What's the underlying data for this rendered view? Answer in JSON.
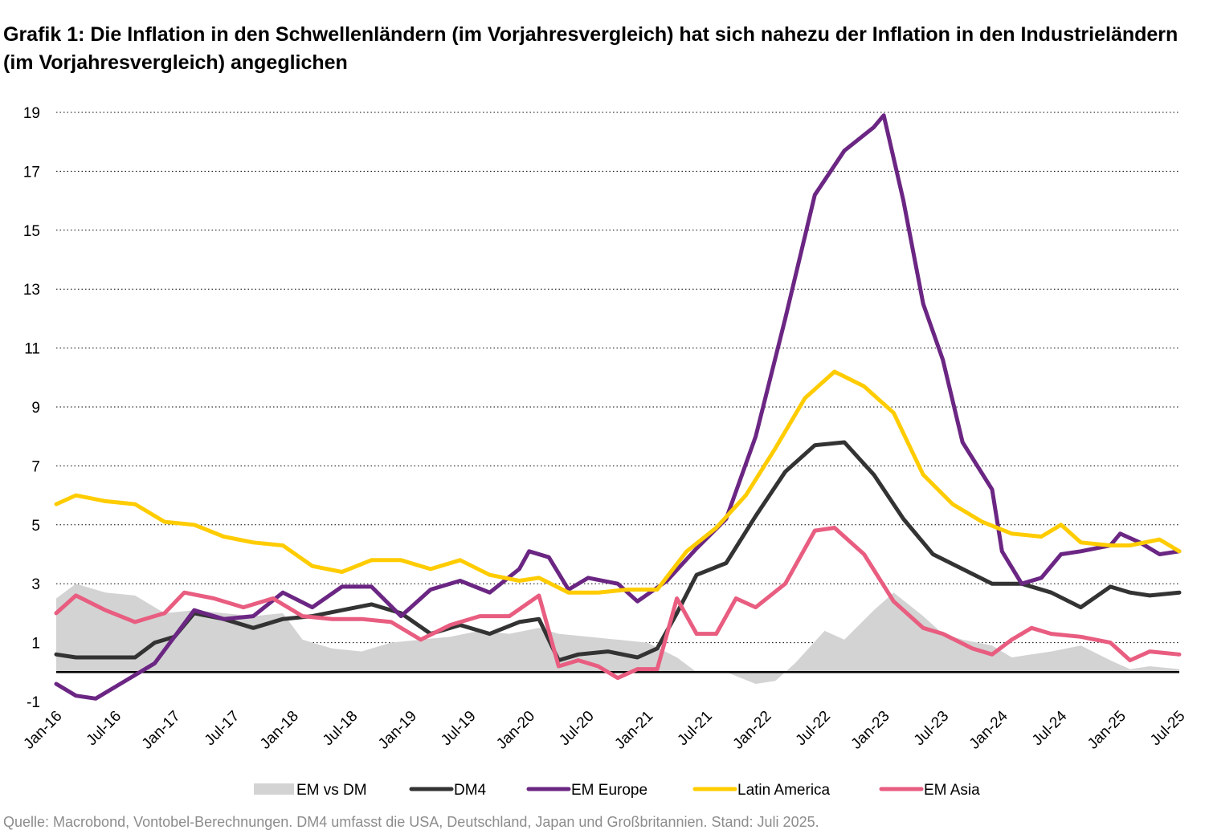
{
  "title": "Grafik 1: Die Inflation in den Schwellenländern (im Vorjahresvergleich) hat sich nahezu der Inflation in den Industrieländern (im Vorjahresvergleich) angeglichen",
  "source": "Quelle: Macrobond, Vontobel-Berechnungen. DM4 umfasst die USA, Deutschland, Japan und Großbritannien. Stand: Juli 2025.",
  "chart_data": {
    "type": "line",
    "title": "Grafik 1: Die Inflation in den Schwellenländern (im Vorjahresvergleich) hat sich nahezu der Inflation in den Industrieländern (im Vorjahresvergleich) angeglichen",
    "xlabel": "",
    "ylabel": "",
    "ylim": [
      -1,
      19
    ],
    "yticks": [
      -1,
      1,
      3,
      5,
      7,
      9,
      11,
      13,
      15,
      17,
      19
    ],
    "xlim": [
      "2016-01",
      "2025-07"
    ],
    "x_tick_labels": [
      "Jan-16",
      "Jul-16",
      "Jan-17",
      "Jul-17",
      "Jan-18",
      "Jul-18",
      "Jan-19",
      "Jul-19",
      "Jan-20",
      "Jul-20",
      "Jan-21",
      "Jul-21",
      "Jan-22",
      "Jul-22",
      "Jan-23",
      "Jul-23",
      "Jan-24",
      "Jul-24",
      "Jan-25",
      "Jul-25"
    ],
    "grid": "horizontal dotted",
    "legend_position": "bottom",
    "zero_line": true,
    "series": [
      {
        "name": "EM vs DM",
        "style": "area",
        "color": "#d3d3d3",
        "points": [
          [
            "2016-01",
            2.5
          ],
          [
            "2016-03",
            3.0
          ],
          [
            "2016-06",
            2.7
          ],
          [
            "2016-09",
            2.6
          ],
          [
            "2016-12",
            2.0
          ],
          [
            "2017-03",
            2.1
          ],
          [
            "2017-06",
            2.0
          ],
          [
            "2017-09",
            1.9
          ],
          [
            "2017-12",
            2.0
          ],
          [
            "2018-02",
            1.1
          ],
          [
            "2018-05",
            0.8
          ],
          [
            "2018-08",
            0.7
          ],
          [
            "2018-11",
            1.0
          ],
          [
            "2019-02",
            1.1
          ],
          [
            "2019-05",
            1.2
          ],
          [
            "2019-08",
            1.4
          ],
          [
            "2019-11",
            1.3
          ],
          [
            "2020-02",
            1.5
          ],
          [
            "2020-04",
            1.3
          ],
          [
            "2020-07",
            1.2
          ],
          [
            "2020-10",
            1.1
          ],
          [
            "2021-01",
            1.0
          ],
          [
            "2021-04",
            0.5
          ],
          [
            "2021-06",
            0.0
          ],
          [
            "2021-09",
            0.0
          ],
          [
            "2021-12",
            -0.4
          ],
          [
            "2022-02",
            -0.3
          ],
          [
            "2022-04",
            0.3
          ],
          [
            "2022-07",
            1.4
          ],
          [
            "2022-09",
            1.1
          ],
          [
            "2022-12",
            2.1
          ],
          [
            "2023-02",
            2.7
          ],
          [
            "2023-05",
            1.9
          ],
          [
            "2023-07",
            1.3
          ],
          [
            "2023-09",
            1.1
          ],
          [
            "2023-12",
            0.9
          ],
          [
            "2024-02",
            0.5
          ],
          [
            "2024-04",
            0.6
          ],
          [
            "2024-06",
            0.7
          ],
          [
            "2024-09",
            0.9
          ],
          [
            "2024-12",
            0.4
          ],
          [
            "2025-02",
            0.1
          ],
          [
            "2025-04",
            0.2
          ],
          [
            "2025-07",
            0.1
          ]
        ]
      },
      {
        "name": "DM4",
        "style": "line",
        "color": "#333333",
        "points": [
          [
            "2016-01",
            0.6
          ],
          [
            "2016-03",
            0.5
          ],
          [
            "2016-06",
            0.5
          ],
          [
            "2016-09",
            0.5
          ],
          [
            "2016-11",
            1.0
          ],
          [
            "2017-01",
            1.2
          ],
          [
            "2017-03",
            2.0
          ],
          [
            "2017-06",
            1.8
          ],
          [
            "2017-09",
            1.5
          ],
          [
            "2017-12",
            1.8
          ],
          [
            "2018-03",
            1.9
          ],
          [
            "2018-06",
            2.1
          ],
          [
            "2018-09",
            2.3
          ],
          [
            "2018-12",
            2.0
          ],
          [
            "2019-03",
            1.3
          ],
          [
            "2019-06",
            1.6
          ],
          [
            "2019-09",
            1.3
          ],
          [
            "2019-12",
            1.7
          ],
          [
            "2020-02",
            1.8
          ],
          [
            "2020-04",
            0.4
          ],
          [
            "2020-06",
            0.6
          ],
          [
            "2020-09",
            0.7
          ],
          [
            "2020-12",
            0.5
          ],
          [
            "2021-02",
            0.8
          ],
          [
            "2021-04",
            2.0
          ],
          [
            "2021-06",
            3.3
          ],
          [
            "2021-09",
            3.7
          ],
          [
            "2021-12",
            5.3
          ],
          [
            "2022-03",
            6.8
          ],
          [
            "2022-06",
            7.7
          ],
          [
            "2022-09",
            7.8
          ],
          [
            "2022-12",
            6.7
          ],
          [
            "2023-03",
            5.2
          ],
          [
            "2023-06",
            4.0
          ],
          [
            "2023-09",
            3.5
          ],
          [
            "2023-12",
            3.0
          ],
          [
            "2024-03",
            3.0
          ],
          [
            "2024-06",
            2.7
          ],
          [
            "2024-09",
            2.2
          ],
          [
            "2024-12",
            2.9
          ],
          [
            "2025-02",
            2.7
          ],
          [
            "2025-04",
            2.6
          ],
          [
            "2025-07",
            2.7
          ]
        ]
      },
      {
        "name": "EM Europe",
        "style": "line",
        "color": "#6b2683",
        "points": [
          [
            "2016-01",
            -0.4
          ],
          [
            "2016-03",
            -0.8
          ],
          [
            "2016-05",
            -0.9
          ],
          [
            "2016-07",
            -0.5
          ],
          [
            "2016-09",
            -0.1
          ],
          [
            "2016-11",
            0.3
          ],
          [
            "2017-01",
            1.2
          ],
          [
            "2017-03",
            2.1
          ],
          [
            "2017-06",
            1.8
          ],
          [
            "2017-09",
            1.9
          ],
          [
            "2017-12",
            2.7
          ],
          [
            "2018-03",
            2.2
          ],
          [
            "2018-06",
            2.9
          ],
          [
            "2018-09",
            2.9
          ],
          [
            "2018-12",
            1.9
          ],
          [
            "2019-03",
            2.8
          ],
          [
            "2019-06",
            3.1
          ],
          [
            "2019-09",
            2.7
          ],
          [
            "2019-12",
            3.5
          ],
          [
            "2020-01",
            4.1
          ],
          [
            "2020-03",
            3.9
          ],
          [
            "2020-05",
            2.8
          ],
          [
            "2020-07",
            3.2
          ],
          [
            "2020-10",
            3.0
          ],
          [
            "2020-12",
            2.4
          ],
          [
            "2021-03",
            3.1
          ],
          [
            "2021-06",
            4.2
          ],
          [
            "2021-09",
            5.2
          ],
          [
            "2021-12",
            8.0
          ],
          [
            "2022-03",
            12.0
          ],
          [
            "2022-06",
            16.2
          ],
          [
            "2022-09",
            17.7
          ],
          [
            "2022-12",
            18.5
          ],
          [
            "2023-01",
            18.9
          ],
          [
            "2023-03",
            16.0
          ],
          [
            "2023-05",
            12.5
          ],
          [
            "2023-07",
            10.6
          ],
          [
            "2023-09",
            7.8
          ],
          [
            "2023-12",
            6.2
          ],
          [
            "2024-01",
            4.1
          ],
          [
            "2024-03",
            3.0
          ],
          [
            "2024-05",
            3.2
          ],
          [
            "2024-07",
            4.0
          ],
          [
            "2024-09",
            4.1
          ],
          [
            "2024-12",
            4.3
          ],
          [
            "2025-01",
            4.7
          ],
          [
            "2025-03",
            4.4
          ],
          [
            "2025-05",
            4.0
          ],
          [
            "2025-07",
            4.1
          ]
        ]
      },
      {
        "name": "Latin America",
        "style": "line",
        "color": "#ffcc00",
        "points": [
          [
            "2016-01",
            5.7
          ],
          [
            "2016-03",
            6.0
          ],
          [
            "2016-06",
            5.8
          ],
          [
            "2016-09",
            5.7
          ],
          [
            "2016-12",
            5.1
          ],
          [
            "2017-03",
            5.0
          ],
          [
            "2017-06",
            4.6
          ],
          [
            "2017-09",
            4.4
          ],
          [
            "2017-12",
            4.3
          ],
          [
            "2018-03",
            3.6
          ],
          [
            "2018-06",
            3.4
          ],
          [
            "2018-09",
            3.8
          ],
          [
            "2018-12",
            3.8
          ],
          [
            "2019-03",
            3.5
          ],
          [
            "2019-06",
            3.8
          ],
          [
            "2019-09",
            3.3
          ],
          [
            "2019-12",
            3.1
          ],
          [
            "2020-02",
            3.2
          ],
          [
            "2020-05",
            2.7
          ],
          [
            "2020-08",
            2.7
          ],
          [
            "2020-11",
            2.8
          ],
          [
            "2021-02",
            2.8
          ],
          [
            "2021-05",
            4.1
          ],
          [
            "2021-08",
            4.9
          ],
          [
            "2021-11",
            6.0
          ],
          [
            "2022-02",
            7.6
          ],
          [
            "2022-05",
            9.3
          ],
          [
            "2022-08",
            10.2
          ],
          [
            "2022-11",
            9.7
          ],
          [
            "2023-02",
            8.8
          ],
          [
            "2023-05",
            6.7
          ],
          [
            "2023-08",
            5.7
          ],
          [
            "2023-11",
            5.1
          ],
          [
            "2024-02",
            4.7
          ],
          [
            "2024-05",
            4.6
          ],
          [
            "2024-07",
            5.0
          ],
          [
            "2024-09",
            4.4
          ],
          [
            "2024-12",
            4.3
          ],
          [
            "2025-02",
            4.3
          ],
          [
            "2025-05",
            4.5
          ],
          [
            "2025-07",
            4.1
          ]
        ]
      },
      {
        "name": "EM Asia",
        "style": "line",
        "color": "#e85d80",
        "points": [
          [
            "2016-01",
            2.0
          ],
          [
            "2016-03",
            2.6
          ],
          [
            "2016-06",
            2.1
          ],
          [
            "2016-09",
            1.7
          ],
          [
            "2016-12",
            2.0
          ],
          [
            "2017-02",
            2.7
          ],
          [
            "2017-05",
            2.5
          ],
          [
            "2017-08",
            2.2
          ],
          [
            "2017-11",
            2.5
          ],
          [
            "2018-02",
            1.9
          ],
          [
            "2018-05",
            1.8
          ],
          [
            "2018-08",
            1.8
          ],
          [
            "2018-11",
            1.7
          ],
          [
            "2019-02",
            1.1
          ],
          [
            "2019-05",
            1.6
          ],
          [
            "2019-08",
            1.9
          ],
          [
            "2019-11",
            1.9
          ],
          [
            "2020-02",
            2.6
          ],
          [
            "2020-04",
            0.2
          ],
          [
            "2020-06",
            0.4
          ],
          [
            "2020-08",
            0.2
          ],
          [
            "2020-10",
            -0.2
          ],
          [
            "2020-12",
            0.1
          ],
          [
            "2021-02",
            0.1
          ],
          [
            "2021-04",
            2.5
          ],
          [
            "2021-06",
            1.3
          ],
          [
            "2021-08",
            1.3
          ],
          [
            "2021-10",
            2.5
          ],
          [
            "2021-12",
            2.2
          ],
          [
            "2022-03",
            3.0
          ],
          [
            "2022-06",
            4.8
          ],
          [
            "2022-08",
            4.9
          ],
          [
            "2022-11",
            4.0
          ],
          [
            "2023-02",
            2.4
          ],
          [
            "2023-05",
            1.5
          ],
          [
            "2023-07",
            1.3
          ],
          [
            "2023-10",
            0.8
          ],
          [
            "2023-12",
            0.6
          ],
          [
            "2024-02",
            1.1
          ],
          [
            "2024-04",
            1.5
          ],
          [
            "2024-06",
            1.3
          ],
          [
            "2024-09",
            1.2
          ],
          [
            "2024-12",
            1.0
          ],
          [
            "2025-02",
            0.4
          ],
          [
            "2025-04",
            0.7
          ],
          [
            "2025-07",
            0.6
          ]
        ]
      }
    ]
  }
}
